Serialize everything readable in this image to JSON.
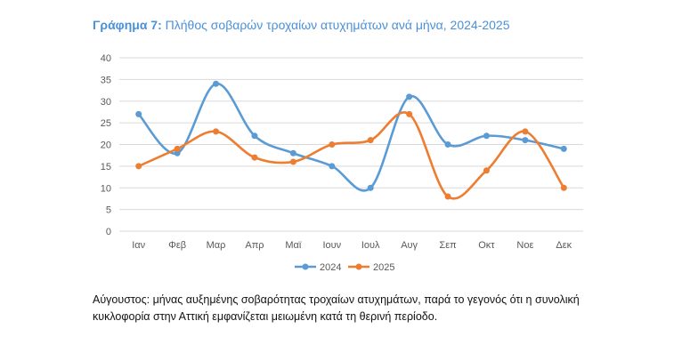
{
  "chart_data": {
    "type": "line",
    "title_prefix": "Γράφημα 7:",
    "title": "Πλήθος σοβαρών τροχαίων ατυχημάτων ανά μήνα, 2024-2025",
    "categories": [
      "Ιαν",
      "Φεβ",
      "Μαρ",
      "Απρ",
      "Μαϊ",
      "Ιουν",
      "Ιουλ",
      "Αυγ",
      "Σεπ",
      "Οκτ",
      "Νοε",
      "Δεκ"
    ],
    "series": [
      {
        "name": "2024",
        "color": "#5b9bd5",
        "values": [
          27,
          18,
          34,
          22,
          18,
          15,
          10,
          31,
          20,
          22,
          21,
          19
        ]
      },
      {
        "name": "2025",
        "color": "#ed7d31",
        "values": [
          15,
          19,
          23,
          17,
          16,
          20,
          21,
          27,
          8,
          14,
          23,
          10
        ]
      }
    ],
    "ylim": [
      0,
      40
    ],
    "yticks": [
      0,
      5,
      10,
      15,
      20,
      25,
      30,
      35,
      40
    ],
    "grid": true,
    "legend": "bottom",
    "xlabel": "",
    "ylabel": ""
  },
  "note": "Αύγουστος: μήνας αυξημένης σοβαρότητας τροχαίων ατυχημάτων, παρά το γεγονός ότι η συνολική κυκλοφορία στην Αττική εμφανίζεται μειωμένη κατά τη θερινή περίοδο."
}
